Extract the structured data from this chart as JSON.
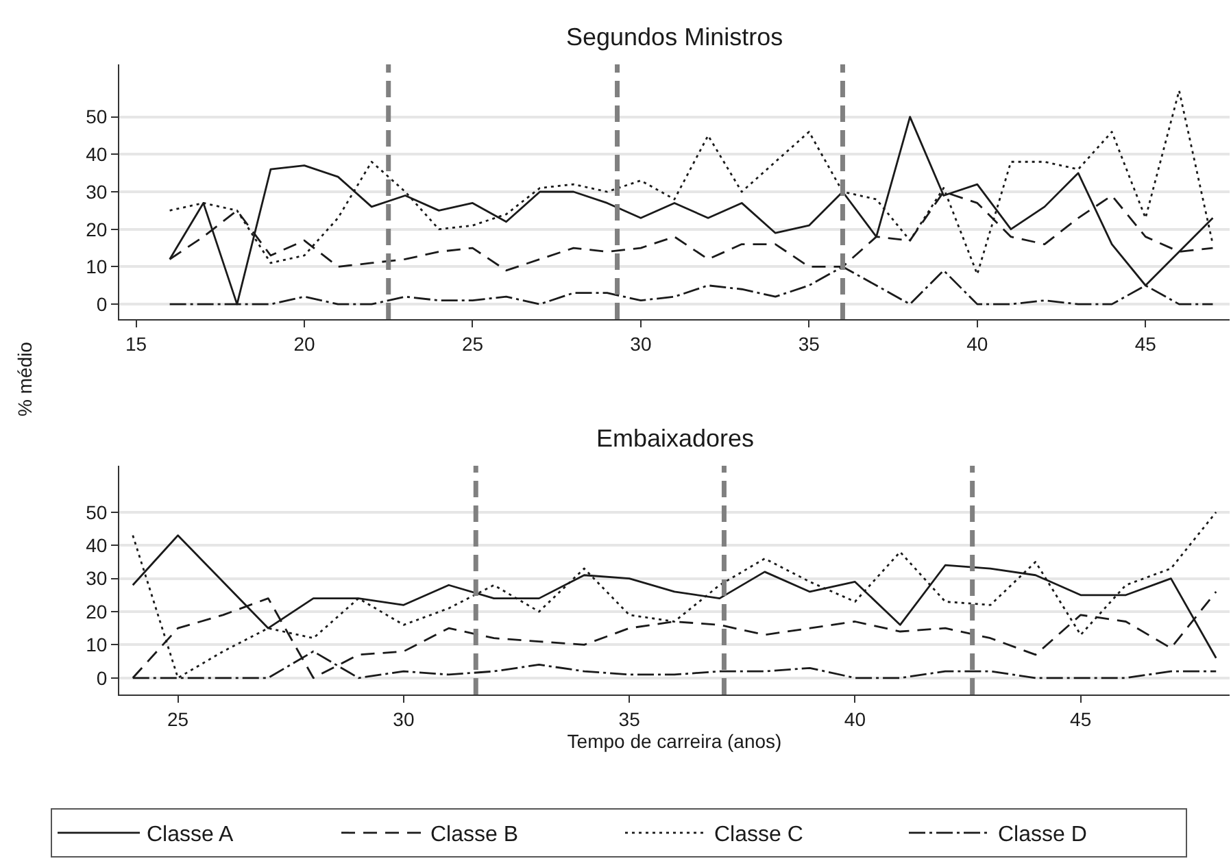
{
  "chart_data": [
    {
      "type": "line",
      "title": "Segundos Ministros",
      "ylabel": "% médio",
      "x": [
        16,
        17,
        18,
        19,
        20,
        21,
        22,
        23,
        24,
        25,
        26,
        27,
        28,
        29,
        30,
        31,
        32,
        33,
        34,
        35,
        36,
        37,
        38,
        39,
        40,
        41,
        42,
        43,
        44,
        45,
        46,
        47
      ],
      "xlim": [
        14.5,
        47.5
      ],
      "xticks": [
        15,
        20,
        25,
        30,
        35,
        40,
        45
      ],
      "ylim": [
        -4,
        64
      ],
      "yticks": [
        0,
        10,
        20,
        30,
        40,
        50
      ],
      "grid": "y",
      "legend": "bottom",
      "ref_lines": [
        {
          "axis": "x",
          "value": 22.5,
          "color": "#808080",
          "line_style": "dashed"
        },
        {
          "axis": "x",
          "value": 29.3,
          "color": "#808080",
          "line_style": "dashed"
        },
        {
          "axis": "x",
          "value": 36.0,
          "color": "#808080",
          "line_style": "dashed"
        }
      ],
      "series": [
        {
          "name": "Classe A",
          "color": "#1a1a1a",
          "line_style": "solid",
          "values": [
            12,
            27,
            0,
            36,
            37,
            34,
            26,
            29,
            25,
            27,
            22,
            30,
            30,
            27,
            23,
            27,
            23,
            27,
            19,
            21,
            30,
            18,
            50,
            29,
            32,
            20,
            26,
            35,
            16,
            5,
            14,
            23
          ]
        },
        {
          "name": "Classe B",
          "color": "#1a1a1a",
          "line_style": "dashed",
          "values": [
            12,
            18,
            25,
            13,
            17,
            10,
            11,
            12,
            14,
            15,
            9,
            12,
            15,
            14,
            15,
            18,
            12,
            16,
            16,
            10,
            10,
            18,
            17,
            30,
            27,
            18,
            16,
            23,
            29,
            18,
            14,
            15
          ]
        },
        {
          "name": "Classe C",
          "color": "#1a1a1a",
          "line_style": "dotted",
          "values": [
            25,
            27,
            25,
            11,
            13,
            23,
            38,
            30,
            20,
            21,
            24,
            31,
            32,
            30,
            33,
            28,
            45,
            30,
            38,
            46,
            30,
            28,
            17,
            31,
            8,
            38,
            38,
            36,
            46,
            23,
            57,
            16
          ]
        },
        {
          "name": "Classe D",
          "color": "#1a1a1a",
          "line_style": "dashdot",
          "values": [
            0,
            0,
            0,
            0,
            2,
            0,
            0,
            2,
            1,
            1,
            2,
            0,
            3,
            3,
            1,
            2,
            5,
            4,
            2,
            5,
            10,
            5,
            0,
            9,
            0,
            0,
            1,
            0,
            0,
            5,
            0,
            0
          ]
        }
      ]
    },
    {
      "type": "line",
      "title": "Embaixadores",
      "xlabel": "Tempo de carreira (anos)",
      "x": [
        24,
        25,
        26,
        27,
        28,
        29,
        30,
        31,
        32,
        33,
        34,
        35,
        36,
        37,
        38,
        39,
        40,
        41,
        42,
        43,
        44,
        45,
        46,
        47,
        48
      ],
      "xlim": [
        23.7,
        48.3
      ],
      "xticks": [
        25,
        30,
        35,
        40,
        45
      ],
      "ylim": [
        -5,
        64
      ],
      "yticks": [
        0,
        10,
        20,
        30,
        40,
        50
      ],
      "grid": "y",
      "ref_lines": [
        {
          "axis": "x",
          "value": 31.6,
          "color": "#808080",
          "line_style": "dashed"
        },
        {
          "axis": "x",
          "value": 37.1,
          "color": "#808080",
          "line_style": "dashed"
        },
        {
          "axis": "x",
          "value": 42.6,
          "color": "#808080",
          "line_style": "dashed"
        }
      ],
      "series": [
        {
          "color": "#1a1a1a",
          "line_style": "solid",
          "values": [
            28,
            43,
            29,
            15,
            24,
            24,
            22,
            28,
            24,
            24,
            31,
            30,
            26,
            24,
            32,
            26,
            29,
            16,
            34,
            33,
            31,
            25,
            25,
            30,
            6
          ]
        },
        {
          "color": "#1a1a1a",
          "line_style": "dashed",
          "values": [
            0,
            15,
            19,
            24,
            0,
            7,
            8,
            15,
            12,
            11,
            10,
            15,
            17,
            16,
            13,
            15,
            17,
            14,
            15,
            12,
            7,
            19,
            17,
            9,
            26
          ]
        },
        {
          "color": "#1a1a1a",
          "line_style": "dotted",
          "values": [
            43,
            0,
            8,
            15,
            12,
            24,
            16,
            21,
            28,
            20,
            33,
            19,
            17,
            28,
            36,
            29,
            23,
            38,
            23,
            22,
            35,
            13,
            28,
            33,
            50
          ]
        },
        {
          "color": "#1a1a1a",
          "line_style": "dashdot",
          "values": [
            0,
            0,
            0,
            0,
            8,
            0,
            2,
            1,
            2,
            4,
            2,
            1,
            1,
            2,
            2,
            3,
            0,
            0,
            2,
            2,
            0,
            0,
            0,
            2,
            2
          ]
        }
      ]
    }
  ]
}
